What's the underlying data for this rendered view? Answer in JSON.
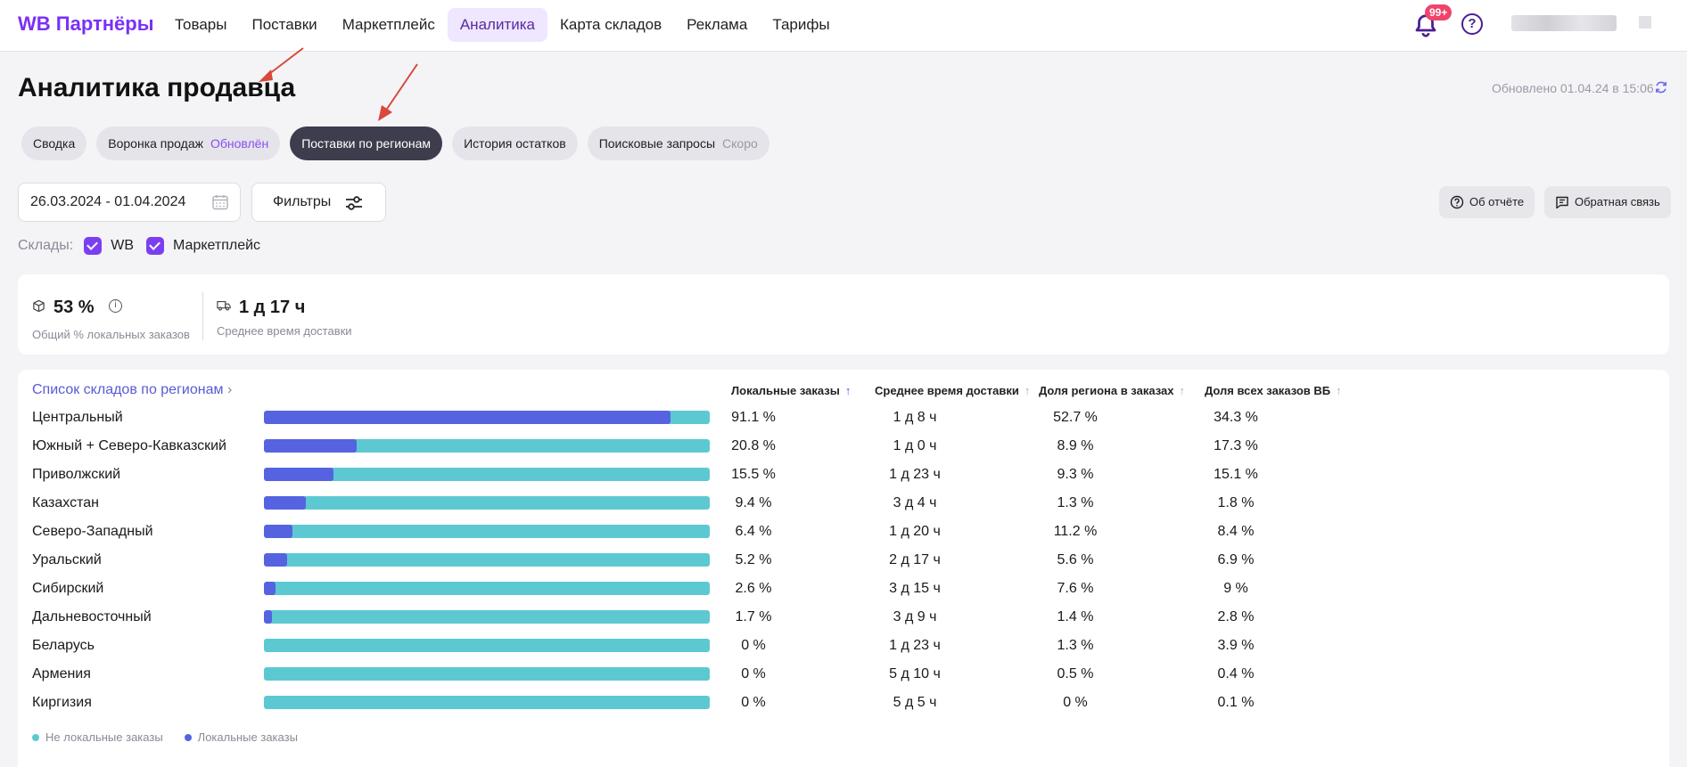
{
  "topbar": {
    "brand": "WB Партнёры",
    "nav": [
      "Товары",
      "Поставки",
      "Маркетплейс",
      "Аналитика",
      "Карта складов",
      "Реклама",
      "Тарифы"
    ],
    "active_nav": "Аналитика",
    "notifications_badge": "99+",
    "help_symbol": "?"
  },
  "page": {
    "title": "Аналитика продавца",
    "updated": "Обновлено 01.04.24 в 15:06"
  },
  "tabs": [
    {
      "label": "Сводка",
      "tag": ""
    },
    {
      "label": "Воронка продаж",
      "tag": "Обновлён"
    },
    {
      "label": "Поставки по регионам",
      "tag": ""
    },
    {
      "label": "История остатков",
      "tag": ""
    },
    {
      "label": "Поисковые запросы",
      "tag": "Скоро"
    }
  ],
  "controls": {
    "date_range": "26.03.2024 - 01.04.2024",
    "filters_label": "Фильтры",
    "about_label": "Об отчёте",
    "feedback_label": "Обратная связь"
  },
  "warehouses": {
    "label": "Склады:",
    "options": [
      "WB",
      "Маркетплейс"
    ]
  },
  "kpi": {
    "local_pct": "53 %",
    "local_pct_label": "Общий % локальных заказов",
    "delivery_time": "1 д 17 ч",
    "delivery_time_label": "Среднее время доставки"
  },
  "table": {
    "link": "Список складов по регионам",
    "columns": [
      "Локальные заказы",
      "Среднее время доставки",
      "Доля региона в заказах",
      "Доля всех заказов ВБ"
    ],
    "rows": [
      {
        "region": "Центральный",
        "local": "91.1 %",
        "time": "1 д 8 ч",
        "share": "52.7 %",
        "wb": "34.3 %",
        "fill": 91.1
      },
      {
        "region": "Южный + Северо-Кавказский",
        "local": "20.8 %",
        "time": "1 д 0 ч",
        "share": "8.9 %",
        "wb": "17.3 %",
        "fill": 20.8
      },
      {
        "region": "Приволжский",
        "local": "15.5 %",
        "time": "1 д 23 ч",
        "share": "9.3 %",
        "wb": "15.1 %",
        "fill": 15.5
      },
      {
        "region": "Казахстан",
        "local": "9.4 %",
        "time": "3 д 4 ч",
        "share": "1.3 %",
        "wb": "1.8 %",
        "fill": 9.4
      },
      {
        "region": "Северо-Западный",
        "local": "6.4 %",
        "time": "1 д 20 ч",
        "share": "11.2 %",
        "wb": "8.4 %",
        "fill": 6.4
      },
      {
        "region": "Уральский",
        "local": "5.2 %",
        "time": "2 д 17 ч",
        "share": "5.6 %",
        "wb": "6.9 %",
        "fill": 5.2
      },
      {
        "region": "Сибирский",
        "local": "2.6 %",
        "time": "3 д 15 ч",
        "share": "7.6 %",
        "wb": "9 %",
        "fill": 2.6
      },
      {
        "region": "Дальневосточный",
        "local": "1.7 %",
        "time": "3 д 9 ч",
        "share": "1.4 %",
        "wb": "2.8 %",
        "fill": 1.7
      },
      {
        "region": "Беларусь",
        "local": "0 %",
        "time": "1 д 23 ч",
        "share": "1.3 %",
        "wb": "3.9 %",
        "fill": 0
      },
      {
        "region": "Армения",
        "local": "0 %",
        "time": "5 д 10 ч",
        "share": "0.5 %",
        "wb": "0.4 %",
        "fill": 0
      },
      {
        "region": "Киргизия",
        "local": "0 %",
        "time": "5 д 5 ч",
        "share": "0 %",
        "wb": "0.1 %",
        "fill": 0
      }
    ],
    "legend": [
      "Не локальные заказы",
      "Локальные заказы"
    ]
  },
  "colors": {
    "accent": "#7b3ff2",
    "local_bar": "#5563e0",
    "nonlocal_bar": "#5cc9d2",
    "annotation_arrow": "#d9483b"
  }
}
